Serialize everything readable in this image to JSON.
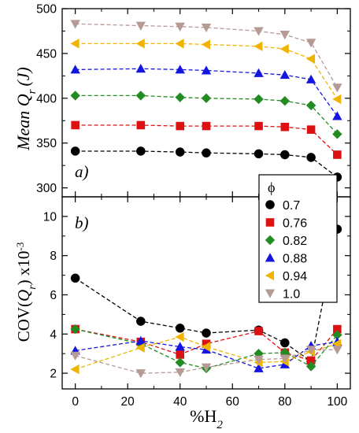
{
  "chart_data": [
    {
      "panel": "top",
      "type": "line",
      "panel_label": "a)",
      "ylabel_main": "Mean Q",
      "ylabel_sub": "r",
      "ylabel_unit": "(J)",
      "ylim": [
        290,
        500
      ],
      "yticks": [
        300,
        350,
        400,
        450,
        500
      ],
      "xlim": [
        -5,
        105
      ],
      "xticks": [
        0,
        20,
        40,
        60,
        80,
        100
      ],
      "x": [
        0,
        25,
        40,
        50,
        70,
        80,
        90,
        100
      ],
      "series": [
        {
          "name": "0.7",
          "color": "#000000",
          "marker": "circle",
          "values": [
            341,
            341,
            340,
            339,
            338,
            337,
            334,
            312
          ]
        },
        {
          "name": "0.76",
          "color": "#dd1111",
          "marker": "square",
          "values": [
            370,
            370,
            369,
            369,
            369,
            368,
            365,
            337
          ]
        },
        {
          "name": "0.82",
          "color": "#228b22",
          "marker": "diamond",
          "values": [
            403,
            403,
            401,
            400,
            399,
            397,
            392,
            360
          ]
        },
        {
          "name": "0.88",
          "color": "#1515e0",
          "marker": "triangle-up",
          "values": [
            432,
            433,
            432,
            431,
            428,
            426,
            421,
            380
          ]
        },
        {
          "name": "0.94",
          "color": "#f0b400",
          "marker": "triangle-left",
          "values": [
            461,
            461,
            461,
            460,
            458,
            455,
            444,
            399
          ]
        },
        {
          "name": "1.0",
          "color": "#b59a95",
          "marker": "triangle-down",
          "values": [
            483,
            481,
            480,
            479,
            475,
            471,
            462,
            412
          ]
        }
      ]
    },
    {
      "panel": "bottom",
      "type": "line",
      "panel_label": "b)",
      "ylabel_left": "COV(",
      "ylabel_q": "Q",
      "ylabel_sub": "r",
      "ylabel_right": ") x10",
      "ylabel_exp": "-3",
      "xlabel_main": "%H",
      "xlabel_sub": "2",
      "ylim": [
        1.2,
        11.0
      ],
      "yticks": [
        2,
        4,
        6,
        8,
        10
      ],
      "xlim": [
        -5,
        105
      ],
      "xticks": [
        0,
        20,
        40,
        60,
        80,
        100
      ],
      "x": [
        0,
        25,
        40,
        50,
        70,
        80,
        90,
        100
      ],
      "series": [
        {
          "name": "0.7",
          "color": "#000000",
          "marker": "circle",
          "values": [
            6.85,
            4.65,
            4.3,
            4.05,
            4.2,
            3.55,
            2.6,
            9.35
          ]
        },
        {
          "name": "0.76",
          "color": "#dd1111",
          "marker": "square",
          "values": [
            4.25,
            3.6,
            2.95,
            3.5,
            4.15,
            3.05,
            2.65,
            4.25
          ]
        },
        {
          "name": "0.82",
          "color": "#228b22",
          "marker": "diamond",
          "values": [
            4.25,
            3.5,
            2.55,
            2.25,
            3.0,
            3.05,
            2.35,
            3.95
          ]
        },
        {
          "name": "0.88",
          "color": "#1515e0",
          "marker": "triangle-up",
          "values": [
            3.15,
            3.65,
            3.35,
            3.2,
            2.25,
            2.45,
            3.4,
            3.6
          ]
        },
        {
          "name": "0.94",
          "color": "#f0b400",
          "marker": "triangle-left",
          "values": [
            2.2,
            3.3,
            3.85,
            3.35,
            2.55,
            2.6,
            3.1,
            3.5
          ]
        },
        {
          "name": "1.0",
          "color": "#b59a95",
          "marker": "triangle-down",
          "values": [
            2.9,
            2.0,
            2.05,
            2.3,
            2.7,
            2.75,
            3.2,
            3.2
          ]
        }
      ]
    }
  ],
  "legend": {
    "title": "ϕ",
    "placement": "right, spanning both panels",
    "entries": [
      "0.7",
      "0.76",
      "0.82",
      "0.88",
      "0.94",
      "1.0"
    ]
  }
}
